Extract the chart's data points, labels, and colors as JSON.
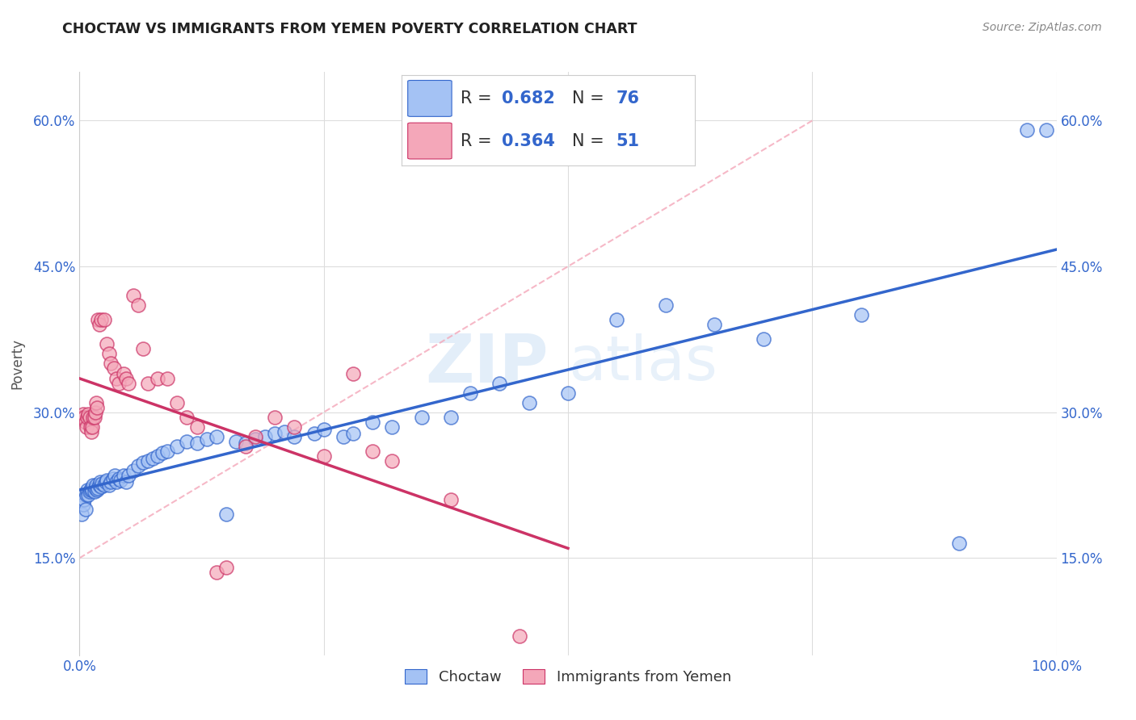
{
  "title": "CHOCTAW VS IMMIGRANTS FROM YEMEN POVERTY CORRELATION CHART",
  "source": "Source: ZipAtlas.com",
  "ylabel": "Poverty",
  "blue_color": "#a4c2f4",
  "pink_color": "#f4a7b9",
  "trendline_blue": "#3366cc",
  "trendline_pink": "#cc3366",
  "dashed_color": "#f4a7b9",
  "R_blue": 0.682,
  "N_blue": 76,
  "R_pink": 0.364,
  "N_pink": 51,
  "blue_scatter_x": [
    0.002,
    0.003,
    0.004,
    0.005,
    0.006,
    0.007,
    0.008,
    0.009,
    0.01,
    0.011,
    0.012,
    0.013,
    0.014,
    0.015,
    0.016,
    0.017,
    0.018,
    0.019,
    0.02,
    0.021,
    0.022,
    0.023,
    0.025,
    0.027,
    0.028,
    0.03,
    0.032,
    0.034,
    0.036,
    0.038,
    0.04,
    0.042,
    0.045,
    0.048,
    0.05,
    0.055,
    0.06,
    0.065,
    0.07,
    0.075,
    0.08,
    0.085,
    0.09,
    0.1,
    0.11,
    0.12,
    0.13,
    0.14,
    0.15,
    0.16,
    0.17,
    0.18,
    0.19,
    0.2,
    0.21,
    0.22,
    0.24,
    0.25,
    0.27,
    0.28,
    0.3,
    0.32,
    0.35,
    0.38,
    0.4,
    0.43,
    0.46,
    0.5,
    0.55,
    0.6,
    0.65,
    0.7,
    0.8,
    0.9,
    0.97,
    0.99
  ],
  "blue_scatter_y": [
    0.195,
    0.215,
    0.205,
    0.21,
    0.2,
    0.215,
    0.22,
    0.215,
    0.218,
    0.22,
    0.222,
    0.22,
    0.225,
    0.218,
    0.222,
    0.225,
    0.22,
    0.222,
    0.225,
    0.228,
    0.223,
    0.227,
    0.225,
    0.228,
    0.23,
    0.225,
    0.228,
    0.232,
    0.235,
    0.228,
    0.232,
    0.23,
    0.235,
    0.228,
    0.235,
    0.24,
    0.245,
    0.248,
    0.25,
    0.252,
    0.255,
    0.258,
    0.26,
    0.265,
    0.27,
    0.268,
    0.272,
    0.275,
    0.195,
    0.27,
    0.268,
    0.272,
    0.275,
    0.278,
    0.28,
    0.275,
    0.278,
    0.282,
    0.275,
    0.278,
    0.29,
    0.285,
    0.295,
    0.295,
    0.32,
    0.33,
    0.31,
    0.32,
    0.395,
    0.41,
    0.39,
    0.375,
    0.4,
    0.165,
    0.59,
    0.59
  ],
  "pink_scatter_x": [
    0.002,
    0.003,
    0.004,
    0.005,
    0.006,
    0.007,
    0.008,
    0.009,
    0.01,
    0.011,
    0.012,
    0.013,
    0.014,
    0.015,
    0.016,
    0.017,
    0.018,
    0.019,
    0.02,
    0.022,
    0.025,
    0.028,
    0.03,
    0.032,
    0.035,
    0.038,
    0.04,
    0.045,
    0.048,
    0.05,
    0.055,
    0.06,
    0.065,
    0.07,
    0.08,
    0.09,
    0.1,
    0.11,
    0.12,
    0.14,
    0.15,
    0.17,
    0.18,
    0.2,
    0.22,
    0.25,
    0.28,
    0.3,
    0.32,
    0.38,
    0.45
  ],
  "pink_scatter_y": [
    0.295,
    0.295,
    0.298,
    0.295,
    0.29,
    0.285,
    0.295,
    0.298,
    0.295,
    0.285,
    0.28,
    0.285,
    0.295,
    0.295,
    0.3,
    0.31,
    0.305,
    0.395,
    0.39,
    0.395,
    0.395,
    0.37,
    0.36,
    0.35,
    0.345,
    0.335,
    0.33,
    0.34,
    0.335,
    0.33,
    0.42,
    0.41,
    0.365,
    0.33,
    0.335,
    0.335,
    0.31,
    0.295,
    0.285,
    0.135,
    0.14,
    0.265,
    0.275,
    0.295,
    0.285,
    0.255,
    0.34,
    0.26,
    0.25,
    0.21,
    0.07
  ],
  "watermark_zip": "ZIP",
  "watermark_atlas": "atlas",
  "background_color": "#ffffff",
  "grid_color": "#dddddd",
  "xlim": [
    0.0,
    1.0
  ],
  "ylim": [
    0.05,
    0.65
  ],
  "yticks": [
    0.15,
    0.3,
    0.45,
    0.6
  ],
  "ytick_labels": [
    "15.0%",
    "30.0%",
    "45.0%",
    "60.0%"
  ],
  "xtick_labels": [
    "0.0%",
    "",
    "",
    "",
    "100.0%"
  ]
}
